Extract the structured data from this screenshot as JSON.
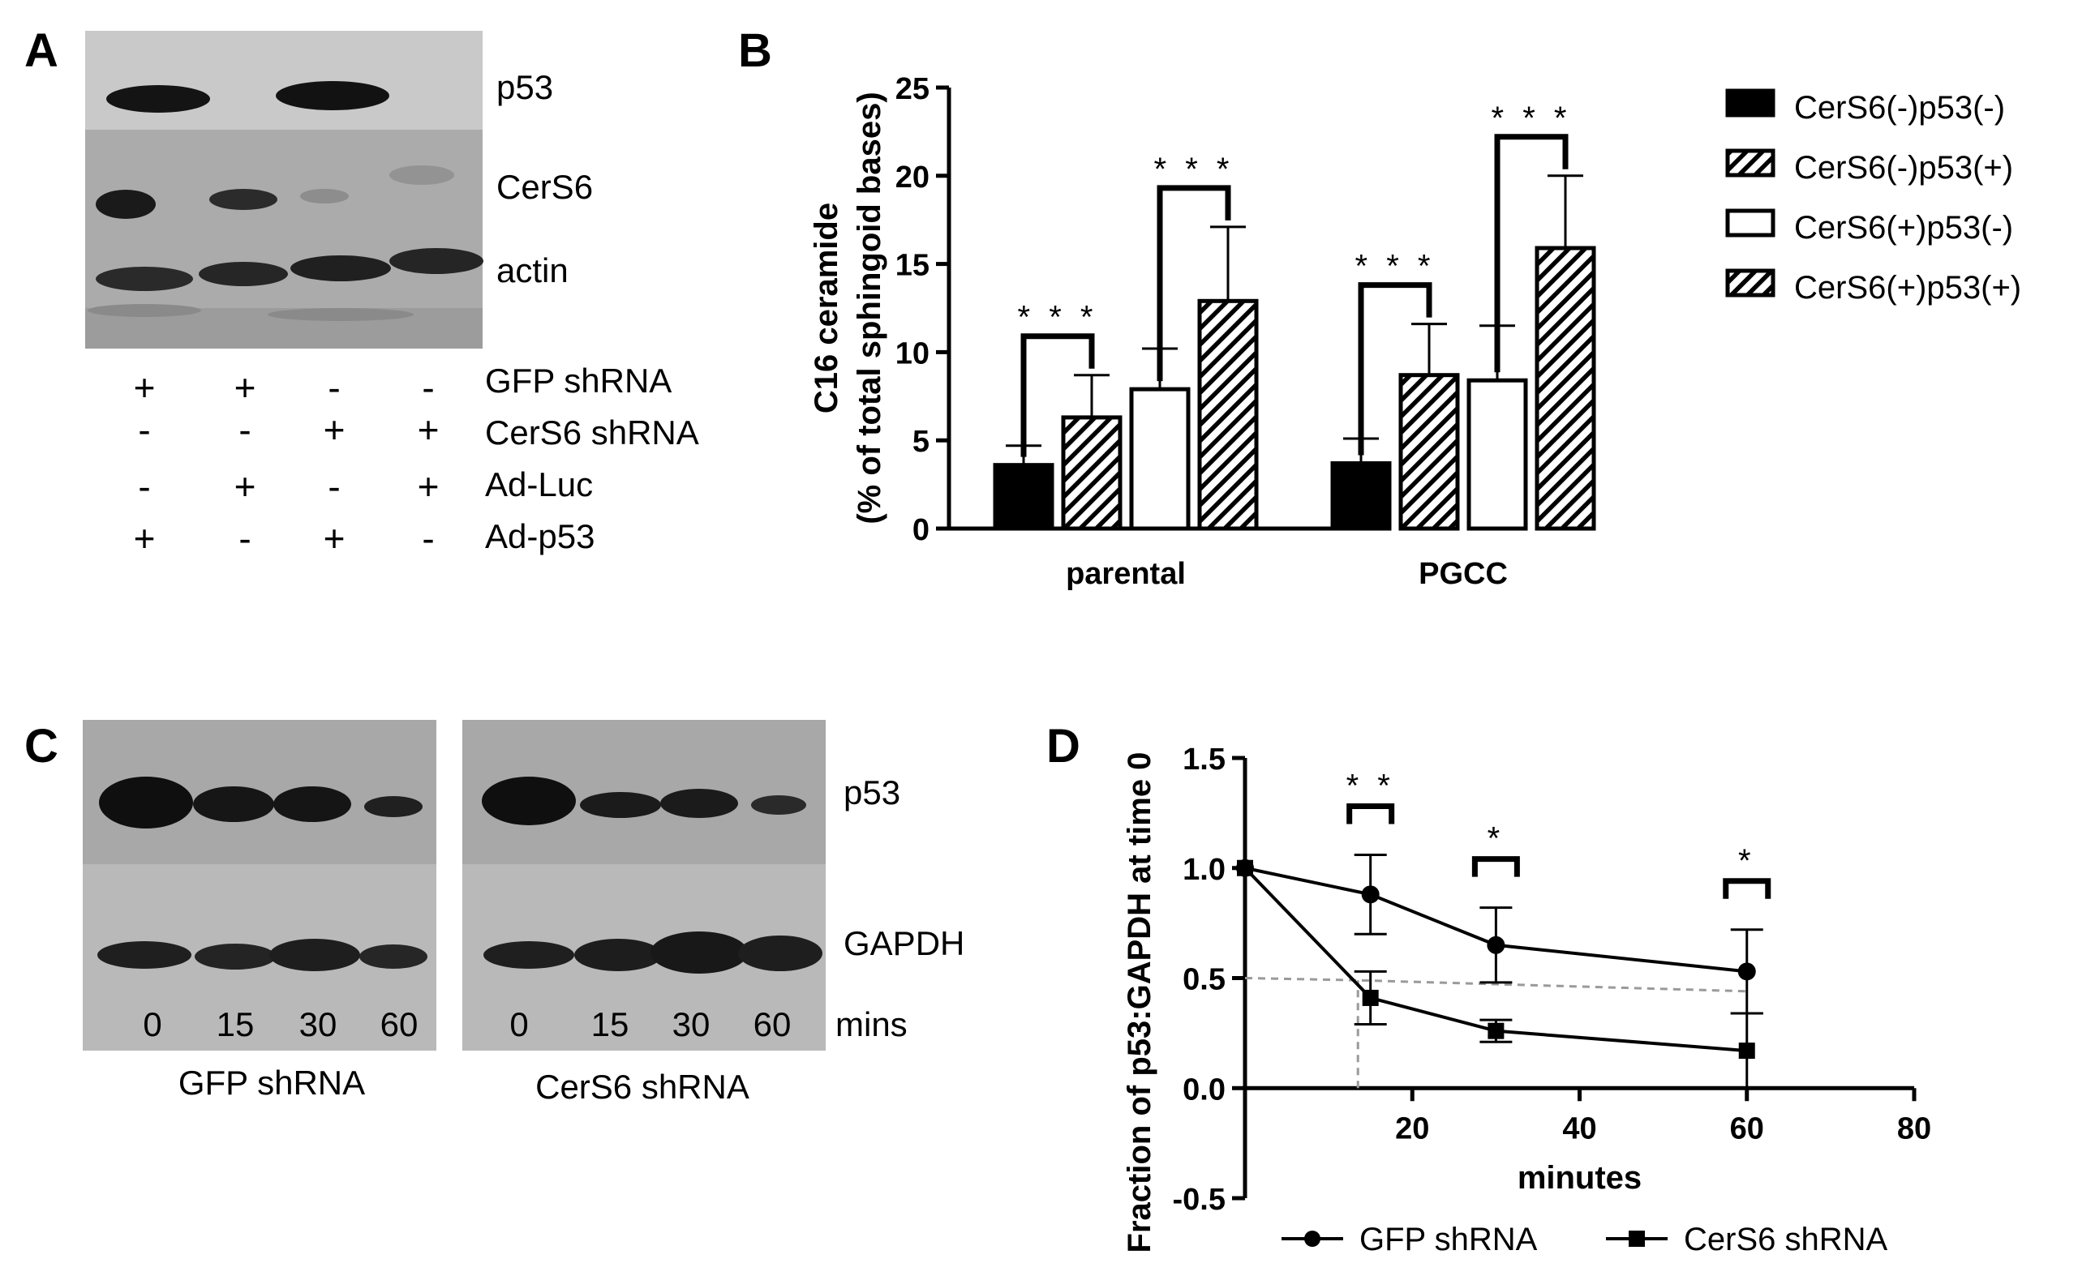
{
  "panels": {
    "A": {
      "label": "A",
      "blot_labels": [
        "p53",
        "CerS6",
        "actin"
      ],
      "condition_rows": [
        {
          "label": "GFP shRNA",
          "signs": [
            "+",
            "+",
            "-",
            "-"
          ]
        },
        {
          "label": "CerS6 shRNA",
          "signs": [
            "-",
            "-",
            "+",
            "+"
          ]
        },
        {
          "label": "Ad-Luc",
          "signs": [
            "-",
            "+",
            "-",
            "+"
          ]
        },
        {
          "label": "Ad-p53",
          "signs": [
            "+",
            "-",
            "+",
            "-"
          ]
        }
      ]
    },
    "B": {
      "label": "B"
    },
    "C": {
      "label": "C",
      "blot_labels": [
        "p53",
        "GAPDH"
      ],
      "timepoints": [
        "0",
        "15",
        "30",
        "60"
      ],
      "unit_label": "mins",
      "group_labels": [
        "GFP shRNA",
        "CerS6 shRNA"
      ]
    },
    "D": {
      "label": "D"
    }
  },
  "colors": {
    "ink": "#000000",
    "blot_background": "#b3b3b3",
    "dashed_guide": "#9a9a9a"
  },
  "chart_data": [
    {
      "type": "bar",
      "panel": "B",
      "title": "",
      "categories": [
        "parental",
        "PGCC"
      ],
      "ylabel_lines": [
        "C16 ceramide",
        "(% of total sphingoid bases)"
      ],
      "xlabel": "",
      "ylim": [
        0,
        25
      ],
      "yticks": [
        0,
        5,
        10,
        15,
        20,
        25
      ],
      "grid": false,
      "legend_position": "right",
      "series": [
        {
          "name": "CerS6(-)p53(-)",
          "fill": "solid",
          "values": [
            3.6,
            3.7
          ],
          "errors": [
            1.1,
            1.4
          ]
        },
        {
          "name": "CerS6(-)p53(+)",
          "fill": "hatch",
          "values": [
            6.3,
            8.7
          ],
          "errors": [
            2.4,
            2.9
          ]
        },
        {
          "name": "CerS6(+)p53(-)",
          "fill": "open",
          "values": [
            7.9,
            8.4
          ],
          "errors": [
            2.3,
            3.1
          ]
        },
        {
          "name": "CerS6(+)p53(+)",
          "fill": "hatch",
          "values": [
            12.9,
            15.9
          ],
          "errors": [
            4.2,
            4.1
          ]
        }
      ],
      "annotations": [
        {
          "text": "* * *",
          "category": 0,
          "from_series": 0,
          "to_series": 1
        },
        {
          "text": "* * *",
          "category": 0,
          "from_series": 2,
          "to_series": 3
        },
        {
          "text": "* * *",
          "category": 1,
          "from_series": 0,
          "to_series": 1
        },
        {
          "text": "* * *",
          "category": 1,
          "from_series": 2,
          "to_series": 3
        }
      ]
    },
    {
      "type": "line",
      "panel": "D",
      "title": "",
      "xlabel": "minutes",
      "ylabel": "Fraction of p53:GAPDH at time 0",
      "xlim": [
        0,
        80
      ],
      "ylim": [
        -0.5,
        1.5
      ],
      "xticks": [
        20,
        40,
        60,
        80
      ],
      "yticks": [
        -0.5,
        0.0,
        0.5,
        1.0,
        1.5
      ],
      "ytick_labels": [
        "-0.5",
        "0.0",
        "0.5",
        "1.0",
        "1.5"
      ],
      "grid": false,
      "legend_position": "bottom",
      "series": [
        {
          "name": "GFP shRNA",
          "marker": "circle",
          "x": [
            0,
            15,
            30,
            60
          ],
          "y": [
            1.0,
            0.88,
            0.65,
            0.53
          ],
          "errors": [
            0,
            0.18,
            0.17,
            0.19
          ]
        },
        {
          "name": "CerS6 shRNA",
          "marker": "square",
          "x": [
            0,
            15,
            30,
            60
          ],
          "y": [
            1.0,
            0.41,
            0.26,
            0.17
          ],
          "errors": [
            0,
            0.12,
            0.05,
            0.17
          ]
        }
      ],
      "guide_lines": [
        {
          "style": "dashed",
          "points": [
            [
              0,
              0.5
            ],
            [
              13.5,
              0.49
            ],
            [
              60,
              0.44
            ]
          ]
        },
        {
          "style": "dashed",
          "points": [
            [
              13.5,
              0.0
            ],
            [
              13.5,
              0.49
            ]
          ]
        }
      ],
      "annotations": [
        {
          "text": "* *",
          "x": 15
        },
        {
          "text": "*",
          "x": 30
        },
        {
          "text": "*",
          "x": 60
        }
      ]
    }
  ]
}
